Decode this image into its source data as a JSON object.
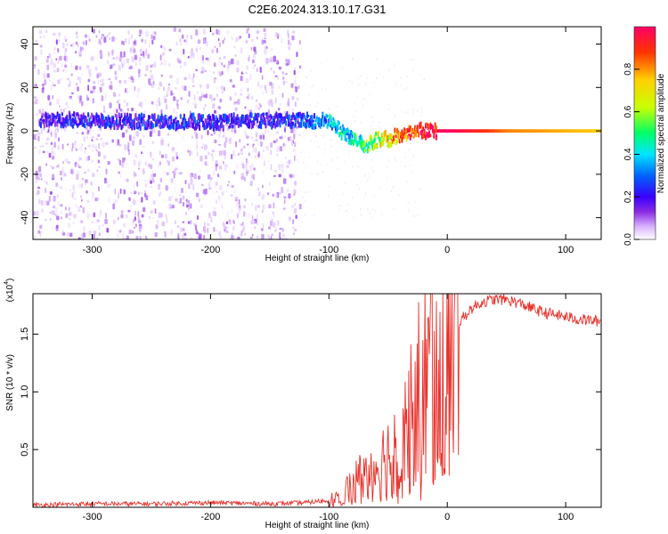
{
  "figure": {
    "title": "C2E6.2024.313.10.17.G31"
  },
  "chart_data": [
    {
      "type": "heatmap",
      "xlabel": "Height of straight line (km)",
      "ylabel": "Frequency (Hz)",
      "xlim": [
        -350,
        130
      ],
      "ylim": [
        -50,
        48
      ],
      "xticks": [
        -300,
        -200,
        -100,
        0,
        100
      ],
      "xtick_labels": [
        "-300",
        "-200",
        "-100",
        "0",
        "100"
      ],
      "yticks": [
        -40,
        -20,
        0,
        20,
        40
      ],
      "ytick_labels": [
        "-40",
        "-20",
        "0",
        "20",
        "40"
      ],
      "grid": false,
      "colorbar": {
        "label": "Normalized spectral amplitude",
        "range": [
          0,
          1
        ],
        "ticks": [
          0.0,
          0.2,
          0.4,
          0.6,
          0.8
        ],
        "tick_labels": [
          "0.0",
          "0.2",
          "0.4",
          "0.6",
          "0.8"
        ],
        "colormap": [
          "#ffffff",
          "#d9b3ff",
          "#8a2be2",
          "#3a00ff",
          "#0064ff",
          "#00e5ff",
          "#00ff66",
          "#c8ff00",
          "#ffd000",
          "#ff3300",
          "#ff0066"
        ]
      },
      "ridge": {
        "x": [
          -340,
          -300,
          -250,
          -200,
          -150,
          -120,
          -100,
          -90,
          -80,
          -70,
          -60,
          -50,
          -40,
          -30,
          -20,
          -10,
          0,
          50,
          130
        ],
        "y": [
          5,
          5,
          4,
          4,
          5,
          5,
          4,
          0,
          -4,
          -7,
          -4,
          -4,
          -2,
          0,
          0,
          0,
          0,
          0,
          0
        ],
        "amplitude": [
          0.25,
          0.3,
          0.3,
          0.3,
          0.3,
          0.35,
          0.45,
          0.5,
          0.5,
          0.6,
          0.7,
          0.75,
          0.85,
          0.9,
          0.95,
          0.98,
          1.0,
          0.85,
          0.8
        ]
      },
      "broadband_noise_x_range": [
        -350,
        -125
      ]
    },
    {
      "type": "line",
      "xlabel": "Height of straight line (km)",
      "ylabel": "SNR (10 * v/v)",
      "y_multiplier": "(x10^4)",
      "xlim": [
        -350,
        130
      ],
      "ylim": [
        0,
        1.85
      ],
      "xticks": [
        -300,
        -200,
        -100,
        0,
        100
      ],
      "xtick_labels": [
        "-300",
        "-200",
        "-100",
        "0",
        "100"
      ],
      "yticks": [
        0.5,
        1.0,
        1.5
      ],
      "ytick_labels": [
        "0.5",
        "1.0",
        "1.5"
      ],
      "grid": false,
      "color": "#e8302a",
      "x": [
        -350,
        -300,
        -250,
        -200,
        -150,
        -120,
        -100,
        -90,
        -80,
        -70,
        -60,
        -50,
        -40,
        -30,
        -20,
        -10,
        0,
        10,
        20,
        30,
        40,
        50,
        60,
        70,
        80,
        90,
        100,
        110,
        120,
        130
      ],
      "y": [
        0.02,
        0.03,
        0.03,
        0.04,
        0.03,
        0.04,
        0.06,
        0.1,
        0.2,
        0.3,
        0.35,
        0.45,
        0.6,
        0.85,
        1.05,
        1.25,
        1.45,
        1.6,
        1.72,
        1.78,
        1.8,
        1.8,
        1.77,
        1.73,
        1.69,
        1.67,
        1.65,
        1.63,
        1.62,
        1.61
      ]
    }
  ]
}
